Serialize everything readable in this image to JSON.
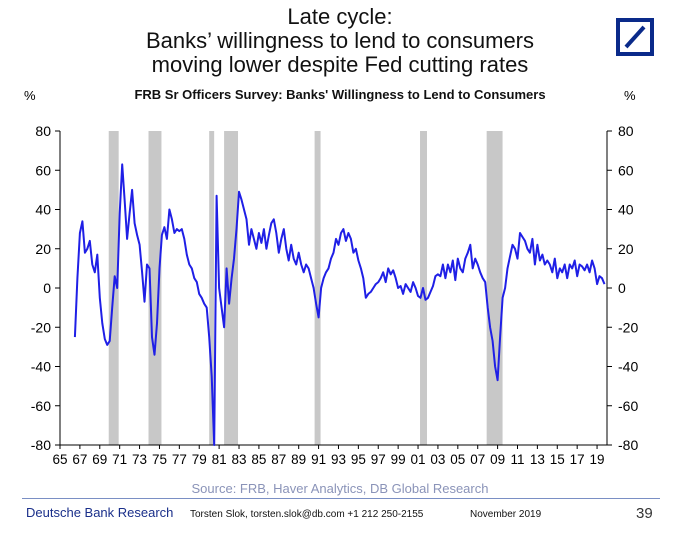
{
  "headline": {
    "line1": "Late cycle:",
    "line2": "Banks’ willingness to lend to consumers",
    "line3": "moving lower despite Fed cutting rates"
  },
  "logo": {
    "icon": "deutsche-bank-logo",
    "color": "#0a2a8a"
  },
  "footer": {
    "source": "Source: FRB, Haver Analytics, DB Global Research",
    "brand": "Deutsche Bank Research",
    "contact": "Torsten Slok, torsten.slok@db.com  +1 212 250-2155",
    "date": "November 2019",
    "page": "39"
  },
  "chart_data": {
    "type": "line",
    "title": "FRB Sr Officers Survey: Banks' Willingness to Lend to Consumers",
    "ylabel_left": "%",
    "ylabel_right": "%",
    "ylim": [
      -80,
      80
    ],
    "yticks": [
      80,
      60,
      40,
      20,
      0,
      -20,
      -40,
      -60,
      -80
    ],
    "xlim": [
      1965,
      2020
    ],
    "xtick_labels": [
      "65",
      "67",
      "69",
      "71",
      "73",
      "75",
      "77",
      "79",
      "81",
      "83",
      "85",
      "87",
      "89",
      "91",
      "93",
      "95",
      "97",
      "99",
      "01",
      "03",
      "05",
      "07",
      "09",
      "11",
      "13",
      "15",
      "17",
      "19"
    ],
    "grid": false,
    "line_color": "#1f1fe6",
    "recessions": [
      [
        1969.9,
        1970.9
      ],
      [
        1973.9,
        1975.2
      ],
      [
        1980.0,
        1980.5
      ],
      [
        1981.5,
        1982.9
      ],
      [
        1990.6,
        1991.2
      ],
      [
        2001.2,
        2001.9
      ],
      [
        2007.9,
        2009.5
      ]
    ],
    "recession_color": "#c8c8c8",
    "series": [
      {
        "values": [
          [
            1966.5,
            -25
          ],
          [
            1966.75,
            5
          ],
          [
            1967.0,
            28
          ],
          [
            1967.25,
            34
          ],
          [
            1967.5,
            18
          ],
          [
            1967.75,
            20
          ],
          [
            1968.0,
            24
          ],
          [
            1968.25,
            12
          ],
          [
            1968.5,
            8
          ],
          [
            1968.75,
            17
          ],
          [
            1969.0,
            -5
          ],
          [
            1969.25,
            -18
          ],
          [
            1969.5,
            -26
          ],
          [
            1969.75,
            -29
          ],
          [
            1970.0,
            -27
          ],
          [
            1970.25,
            -10
          ],
          [
            1970.5,
            6
          ],
          [
            1970.75,
            0
          ],
          [
            1971.0,
            38
          ],
          [
            1971.25,
            63
          ],
          [
            1971.5,
            45
          ],
          [
            1971.75,
            25
          ],
          [
            1972.0,
            38
          ],
          [
            1972.25,
            50
          ],
          [
            1972.5,
            33
          ],
          [
            1972.75,
            27
          ],
          [
            1973.0,
            22
          ],
          [
            1973.25,
            8
          ],
          [
            1973.5,
            -7
          ],
          [
            1973.75,
            12
          ],
          [
            1974.0,
            10
          ],
          [
            1974.25,
            -25
          ],
          [
            1974.5,
            -34
          ],
          [
            1974.75,
            -18
          ],
          [
            1975.0,
            10
          ],
          [
            1975.25,
            27
          ],
          [
            1975.5,
            31
          ],
          [
            1975.75,
            25
          ],
          [
            1976.0,
            40
          ],
          [
            1976.25,
            35
          ],
          [
            1976.5,
            28
          ],
          [
            1976.75,
            30
          ],
          [
            1977.0,
            29
          ],
          [
            1977.25,
            30
          ],
          [
            1977.5,
            25
          ],
          [
            1977.75,
            17
          ],
          [
            1978.0,
            12
          ],
          [
            1978.25,
            10
          ],
          [
            1978.5,
            5
          ],
          [
            1978.75,
            3
          ],
          [
            1979.0,
            -3
          ],
          [
            1979.25,
            -5
          ],
          [
            1979.5,
            -8
          ],
          [
            1979.75,
            -10
          ],
          [
            1980.0,
            -25
          ],
          [
            1980.25,
            -45
          ],
          [
            1980.5,
            -80
          ],
          [
            1980.75,
            47
          ],
          [
            1981.0,
            0
          ],
          [
            1981.25,
            -10
          ],
          [
            1981.5,
            -20
          ],
          [
            1981.75,
            10
          ],
          [
            1982.0,
            -8
          ],
          [
            1982.25,
            5
          ],
          [
            1982.5,
            15
          ],
          [
            1982.75,
            30
          ],
          [
            1983.0,
            49
          ],
          [
            1983.25,
            45
          ],
          [
            1983.5,
            40
          ],
          [
            1983.75,
            35
          ],
          [
            1984.0,
            22
          ],
          [
            1984.25,
            30
          ],
          [
            1984.5,
            25
          ],
          [
            1984.75,
            20
          ],
          [
            1985.0,
            28
          ],
          [
            1985.25,
            23
          ],
          [
            1985.5,
            30
          ],
          [
            1985.75,
            20
          ],
          [
            1986.0,
            27
          ],
          [
            1986.25,
            33
          ],
          [
            1986.5,
            35
          ],
          [
            1986.75,
            28
          ],
          [
            1987.0,
            18
          ],
          [
            1987.25,
            25
          ],
          [
            1987.5,
            30
          ],
          [
            1987.75,
            20
          ],
          [
            1988.0,
            14
          ],
          [
            1988.25,
            22
          ],
          [
            1988.5,
            15
          ],
          [
            1988.75,
            12
          ],
          [
            1989.0,
            18
          ],
          [
            1989.25,
            12
          ],
          [
            1989.5,
            8
          ],
          [
            1989.75,
            12
          ],
          [
            1990.0,
            10
          ],
          [
            1990.25,
            5
          ],
          [
            1990.5,
            0
          ],
          [
            1990.75,
            -8
          ],
          [
            1991.0,
            -15
          ],
          [
            1991.25,
            0
          ],
          [
            1991.5,
            5
          ],
          [
            1991.75,
            8
          ],
          [
            1992.0,
            10
          ],
          [
            1992.25,
            15
          ],
          [
            1992.5,
            18
          ],
          [
            1992.75,
            25
          ],
          [
            1993.0,
            22
          ],
          [
            1993.25,
            28
          ],
          [
            1993.5,
            30
          ],
          [
            1993.75,
            24
          ],
          [
            1994.0,
            28
          ],
          [
            1994.25,
            25
          ],
          [
            1994.5,
            18
          ],
          [
            1994.75,
            20
          ],
          [
            1995.0,
            14
          ],
          [
            1995.25,
            10
          ],
          [
            1995.5,
            5
          ],
          [
            1995.75,
            -5
          ],
          [
            1996.0,
            -3
          ],
          [
            1996.25,
            -2
          ],
          [
            1996.5,
            0
          ],
          [
            1996.75,
            2
          ],
          [
            1997.0,
            3
          ],
          [
            1997.25,
            5
          ],
          [
            1997.5,
            8
          ],
          [
            1997.75,
            3
          ],
          [
            1998.0,
            10
          ],
          [
            1998.25,
            7
          ],
          [
            1998.5,
            9
          ],
          [
            1998.75,
            5
          ],
          [
            1999.0,
            0
          ],
          [
            1999.25,
            1
          ],
          [
            1999.5,
            -3
          ],
          [
            1999.75,
            2
          ],
          [
            2000.0,
            0
          ],
          [
            2000.25,
            -2
          ],
          [
            2000.5,
            3
          ],
          [
            2000.75,
            0
          ],
          [
            2001.0,
            -4
          ],
          [
            2001.25,
            -5
          ],
          [
            2001.5,
            0
          ],
          [
            2001.75,
            -6
          ],
          [
            2002.0,
            -5
          ],
          [
            2002.25,
            -2
          ],
          [
            2002.5,
            1
          ],
          [
            2002.75,
            6
          ],
          [
            2003.0,
            7
          ],
          [
            2003.25,
            6
          ],
          [
            2003.5,
            12
          ],
          [
            2003.75,
            5
          ],
          [
            2004.0,
            12
          ],
          [
            2004.25,
            8
          ],
          [
            2004.5,
            14
          ],
          [
            2004.75,
            4
          ],
          [
            2005.0,
            15
          ],
          [
            2005.25,
            10
          ],
          [
            2005.5,
            8
          ],
          [
            2005.75,
            15
          ],
          [
            2006.0,
            18
          ],
          [
            2006.25,
            22
          ],
          [
            2006.5,
            10
          ],
          [
            2006.75,
            15
          ],
          [
            2007.0,
            12
          ],
          [
            2007.25,
            8
          ],
          [
            2007.5,
            5
          ],
          [
            2007.75,
            3
          ],
          [
            2008.0,
            -10
          ],
          [
            2008.25,
            -20
          ],
          [
            2008.5,
            -27
          ],
          [
            2008.75,
            -40
          ],
          [
            2009.0,
            -47
          ],
          [
            2009.25,
            -25
          ],
          [
            2009.5,
            -5
          ],
          [
            2009.75,
            0
          ],
          [
            2010.0,
            10
          ],
          [
            2010.25,
            16
          ],
          [
            2010.5,
            22
          ],
          [
            2010.75,
            20
          ],
          [
            2011.0,
            15
          ],
          [
            2011.25,
            28
          ],
          [
            2011.5,
            26
          ],
          [
            2011.75,
            24
          ],
          [
            2012.0,
            20
          ],
          [
            2012.25,
            18
          ],
          [
            2012.5,
            25
          ],
          [
            2012.75,
            12
          ],
          [
            2013.0,
            22
          ],
          [
            2013.25,
            14
          ],
          [
            2013.5,
            17
          ],
          [
            2013.75,
            12
          ],
          [
            2014.0,
            14
          ],
          [
            2014.25,
            12
          ],
          [
            2014.5,
            8
          ],
          [
            2014.75,
            15
          ],
          [
            2015.0,
            5
          ],
          [
            2015.25,
            10
          ],
          [
            2015.5,
            8
          ],
          [
            2015.75,
            12
          ],
          [
            2016.0,
            5
          ],
          [
            2016.25,
            12
          ],
          [
            2016.5,
            10
          ],
          [
            2016.75,
            14
          ],
          [
            2017.0,
            6
          ],
          [
            2017.25,
            12
          ],
          [
            2017.5,
            11
          ],
          [
            2017.75,
            9
          ],
          [
            2018.0,
            12
          ],
          [
            2018.25,
            8
          ],
          [
            2018.5,
            14
          ],
          [
            2018.75,
            10
          ],
          [
            2019.0,
            2
          ],
          [
            2019.25,
            6
          ],
          [
            2019.5,
            5
          ],
          [
            2019.75,
            2
          ]
        ]
      }
    ]
  }
}
